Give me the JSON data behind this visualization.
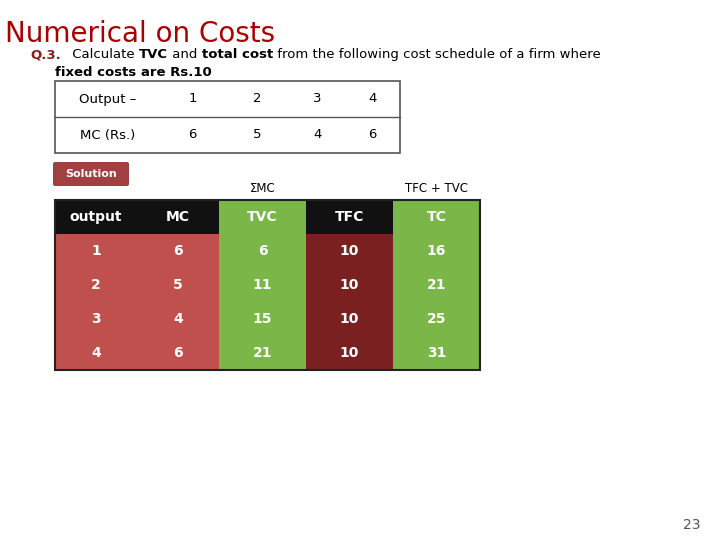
{
  "title": "Numerical on Costs",
  "title_color": "#aa0000",
  "q_prefix": "Q.3.",
  "q_prefix_color": "#8b1a1a",
  "fixed_cost_text": "fixed costs are Rs.10",
  "input_table": {
    "headers": [
      "Output –",
      "1",
      "2",
      "3",
      "4"
    ],
    "row2": [
      "MC (Rs.)",
      "6",
      "5",
      "4",
      "6"
    ]
  },
  "solution_label": "Solution",
  "solution_bg": "#a04040",
  "sigma_mc_label": "ΣMC",
  "tfc_tvc_label": "TFC + TVC",
  "solution_table": {
    "headers": [
      "output",
      "MC",
      "TVC",
      "TFC",
      "TC"
    ],
    "header_colors": [
      "#111111",
      "#111111",
      "#7ab648",
      "#111111",
      "#7ab648"
    ],
    "rows": [
      [
        "1",
        "6",
        "6",
        "10",
        "16"
      ],
      [
        "2",
        "5",
        "11",
        "10",
        "21"
      ],
      [
        "3",
        "4",
        "15",
        "10",
        "25"
      ],
      [
        "4",
        "6",
        "21",
        "10",
        "31"
      ]
    ],
    "row_colors": [
      [
        "#c0504d",
        "#c0504d",
        "#7ab648",
        "#7a2020",
        "#7ab648"
      ],
      [
        "#c0504d",
        "#c0504d",
        "#7ab648",
        "#7a2020",
        "#7ab648"
      ],
      [
        "#c0504d",
        "#c0504d",
        "#7ab648",
        "#7a2020",
        "#7ab648"
      ],
      [
        "#c0504d",
        "#c0504d",
        "#7ab648",
        "#7a2020",
        "#7ab648"
      ]
    ]
  },
  "page_number": "23",
  "bg_color": "#ffffff"
}
